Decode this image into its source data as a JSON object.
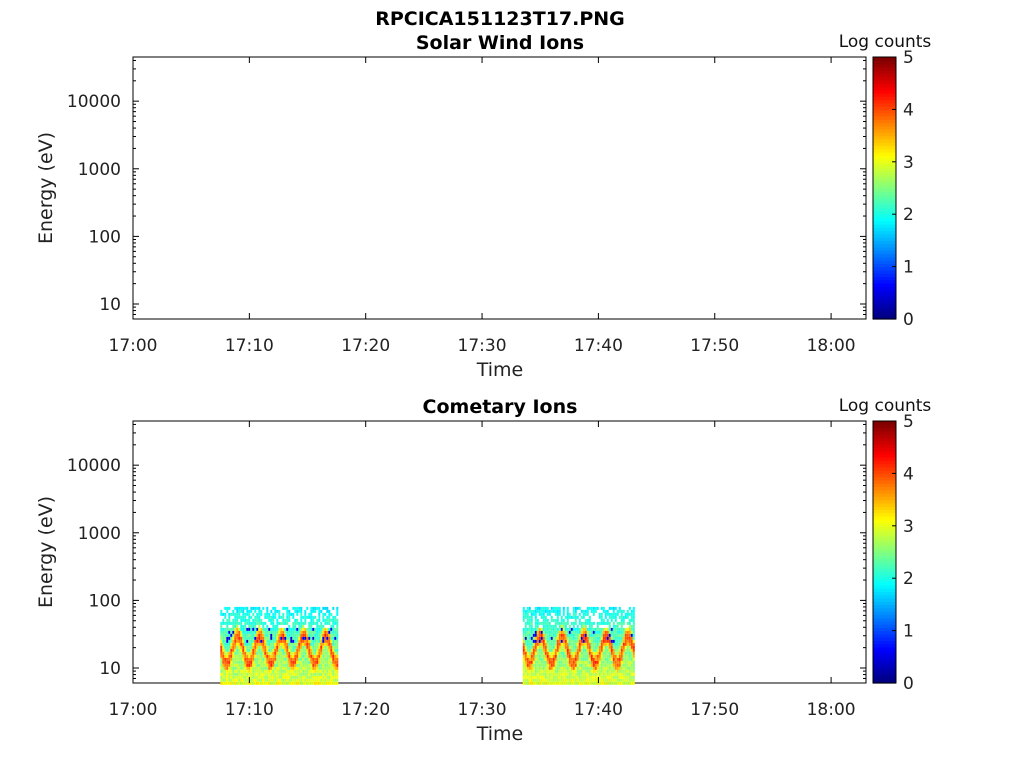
{
  "figure": {
    "suptitle": "RPCICA151123T17.PNG"
  },
  "chart_data": [
    {
      "type": "heatmap",
      "title": "Solar Wind Ions",
      "xlabel": "Time",
      "ylabel": "Energy (eV)",
      "xticks": [
        "17:00",
        "17:10",
        "17:20",
        "17:30",
        "17:40",
        "17:50",
        "18:00"
      ],
      "xlim": [
        "17:00",
        "18:03"
      ],
      "ytick_values": [
        10,
        100,
        1000,
        10000
      ],
      "ytick_labels": [
        "10",
        "100",
        "1000",
        "10000"
      ],
      "yscale": "log",
      "ylim": [
        6,
        45000
      ],
      "colorbar": {
        "label": "Log counts",
        "ticks": [
          "0",
          "1",
          "2",
          "3",
          "4",
          "5"
        ],
        "range": [
          0,
          5
        ],
        "colormap": "jet"
      },
      "data_blocks": []
    },
    {
      "type": "heatmap",
      "title": "Cometary Ions",
      "xlabel": "Time",
      "ylabel": "Energy (eV)",
      "xticks": [
        "17:00",
        "17:10",
        "17:20",
        "17:30",
        "17:40",
        "17:50",
        "18:00"
      ],
      "xlim": [
        "17:00",
        "18:03"
      ],
      "ytick_values": [
        10,
        100,
        1000,
        10000
      ],
      "ytick_labels": [
        "10",
        "100",
        "1000",
        "10000"
      ],
      "yscale": "log",
      "ylim": [
        6,
        45000
      ],
      "colorbar": {
        "label": "Log counts",
        "ticks": [
          "0",
          "1",
          "2",
          "3",
          "4",
          "5"
        ],
        "range": [
          0,
          5
        ],
        "colormap": "jet"
      },
      "data_blocks": [
        {
          "start": "17:07:30",
          "end": "17:17:30",
          "energy_range": [
            6,
            80
          ],
          "peak_log_counts": 4.0,
          "pattern": "oscillating"
        },
        {
          "start": "17:33:30",
          "end": "17:43:00",
          "energy_range": [
            6,
            80
          ],
          "peak_log_counts": 4.0,
          "pattern": "oscillating"
        }
      ]
    }
  ]
}
